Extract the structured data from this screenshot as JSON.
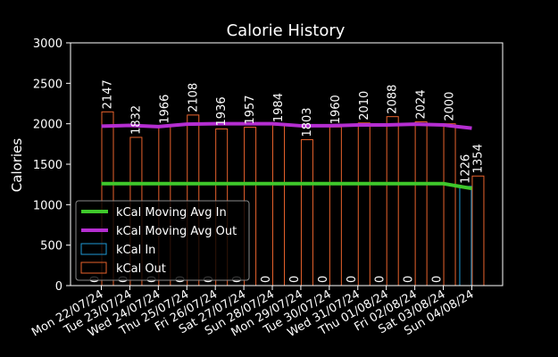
{
  "chart_data": {
    "type": "bar",
    "title": "Calorie History",
    "xlabel": "",
    "ylabel": "Calories",
    "ylim": [
      0,
      3000
    ],
    "yticks": [
      0,
      500,
      1000,
      1500,
      2000,
      2500,
      3000
    ],
    "grid": false,
    "legend_position": "lower-left",
    "categories": [
      "Mon 22/07/24",
      "Tue 23/07/24",
      "Wed 24/07/24",
      "Thu 25/07/24",
      "Fri 26/07/24",
      "Sat 27/07/24",
      "Sun 28/07/24",
      "Mon 29/07/24",
      "Tue 30/07/24",
      "Wed 31/07/24",
      "Thu 01/08/24",
      "Fri 02/08/24",
      "Sat 03/08/24",
      "Sun 04/08/24"
    ],
    "series": [
      {
        "name": "kCal In",
        "kind": "bar",
        "color": "#1f9ad6",
        "values": [
          0,
          0,
          0,
          0,
          0,
          0,
          0,
          0,
          0,
          0,
          0,
          0,
          0,
          1226
        ]
      },
      {
        "name": "kCal Out",
        "kind": "bar",
        "color": "#e8622c",
        "values": [
          2147,
          1832,
          1966,
          2108,
          1936,
          1957,
          1984,
          1803,
          1960,
          2010,
          2088,
          2024,
          2000,
          1354
        ]
      },
      {
        "name": "kCal Moving Avg In",
        "kind": "line",
        "color": "#3fc82b",
        "values": [
          1260,
          1260,
          1260,
          1260,
          1260,
          1260,
          1260,
          1260,
          1260,
          1260,
          1260,
          1260,
          1260,
          1200
        ]
      },
      {
        "name": "kCal Moving Avg Out",
        "kind": "line",
        "color": "#b52ed1",
        "values": [
          1970,
          1980,
          1965,
          1995,
          2000,
          2000,
          2000,
          1975,
          1975,
          1985,
          1985,
          1995,
          1985,
          1945
        ]
      }
    ],
    "legend_order": [
      "kCal Moving Avg In",
      "kCal Moving Avg Out",
      "kCal In",
      "kCal Out"
    ]
  }
}
